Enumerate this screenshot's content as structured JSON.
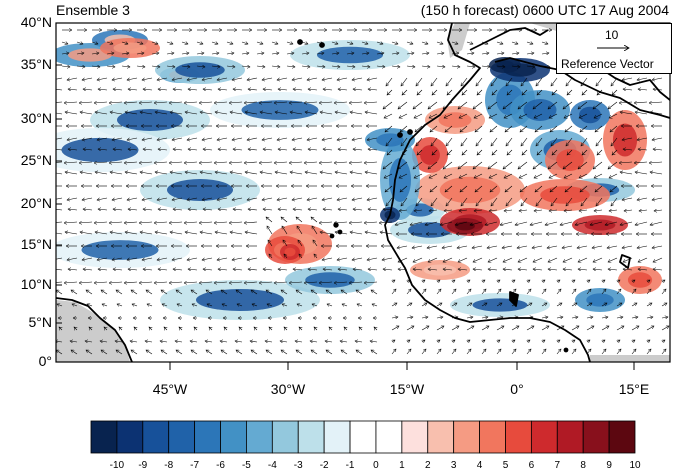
{
  "title": {
    "left": "Ensemble 3",
    "right": "(150 h forecast) 0600 UTC 17 Aug 2004"
  },
  "axes": {
    "y_ticks": [
      "40°N",
      "35°N",
      "30°N",
      "25°N",
      "20°N",
      "15°N",
      "10°N",
      "5°N",
      "0°"
    ],
    "x_ticks": [
      "45°W",
      "30°W",
      "15°W",
      "0°",
      "15°E"
    ]
  },
  "reference_vector": {
    "value": "10",
    "label": "Reference Vector"
  },
  "colorbar": {
    "labels": [
      "-10",
      "-9",
      "-8",
      "-7",
      "-6",
      "-5",
      "-4",
      "-3",
      "-2",
      "-1",
      "0",
      "1",
      "2",
      "3",
      "4",
      "5",
      "6",
      "7",
      "8",
      "9",
      "10"
    ],
    "colors": [
      "#08234f",
      "#0c3272",
      "#17519a",
      "#2062a9",
      "#2c76b8",
      "#4291c5",
      "#64aad2",
      "#93c8dd",
      "#bde0ea",
      "#e3f2f8",
      "#ffffff",
      "#ffffff",
      "#fde0dd",
      "#f8bfae",
      "#f59b83",
      "#f1765e",
      "#e74b3d",
      "#ce2a2d",
      "#b01a25",
      "#88101c",
      "#5c0710"
    ]
  },
  "map": {
    "lon_range": [
      -59,
      20
    ],
    "lat_range": [
      0,
      40
    ],
    "ocean_color": "#ffffff",
    "missing_color": "#cccccc"
  }
}
